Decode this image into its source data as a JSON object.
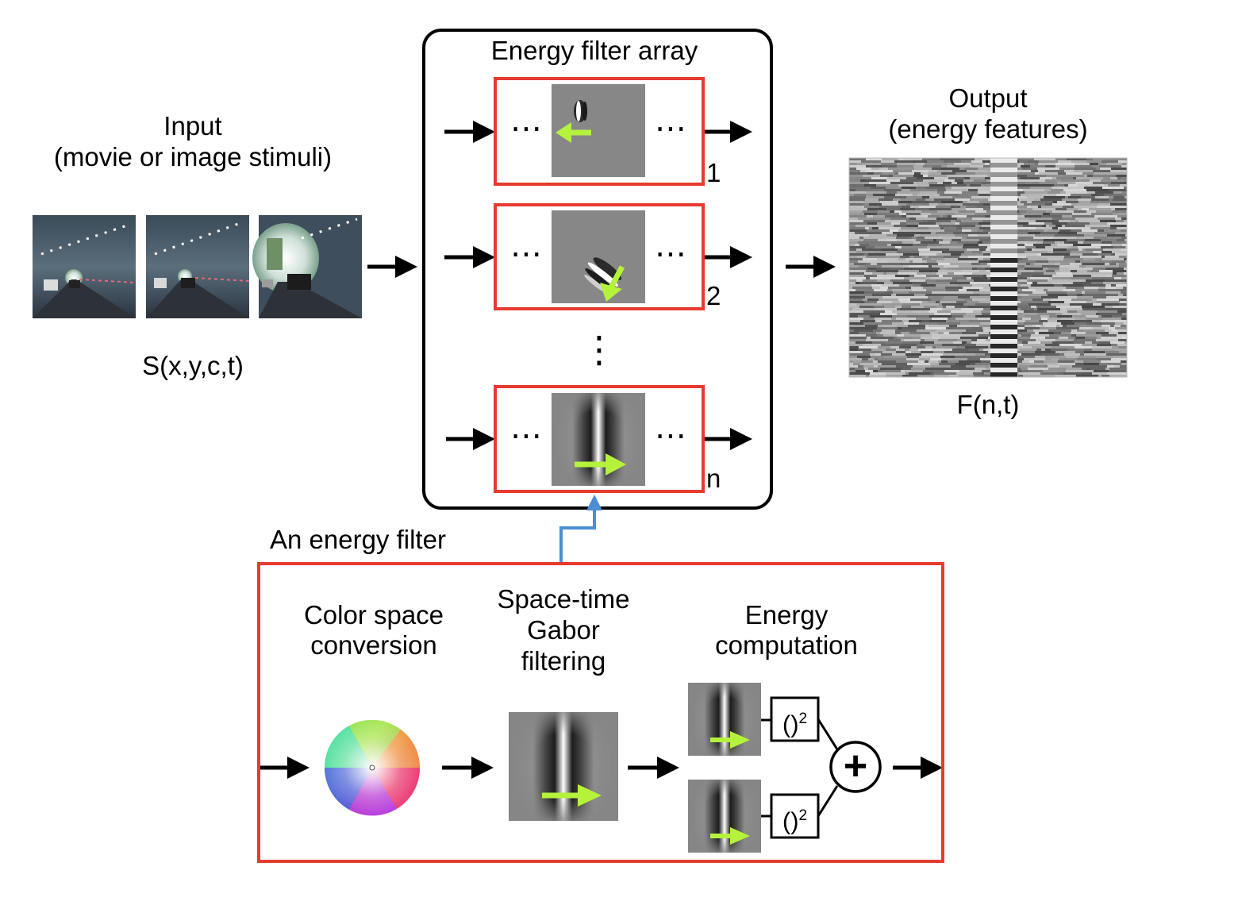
{
  "input": {
    "title": "Input",
    "subtitle": "(movie or image stimuli)",
    "formula": "S(x,y,c,t)"
  },
  "filter_array": {
    "title": "Energy filter array",
    "dots": "⋯",
    "vdots": "⋮",
    "rows": [
      {
        "index": "1",
        "motion": "left"
      },
      {
        "index": "2",
        "motion": "down-left"
      },
      {
        "index": "n",
        "motion": "right"
      }
    ]
  },
  "output": {
    "title": "Output",
    "subtitle": "(energy features)",
    "formula": "F(n,t)"
  },
  "energy_filter": {
    "title": "An energy filter",
    "stage1": [
      "Color space",
      "conversion"
    ],
    "stage2": [
      "Space-time",
      "Gabor",
      "filtering"
    ],
    "stage3": [
      "Energy",
      "computation"
    ],
    "square_label": "()",
    "square_exp": "2",
    "plus": "+"
  },
  "colors": {
    "red_box": "#e63b2e",
    "arrow": "#000000",
    "green_arrow": "#b5f23c",
    "blue_link": "#4a8fd6"
  }
}
